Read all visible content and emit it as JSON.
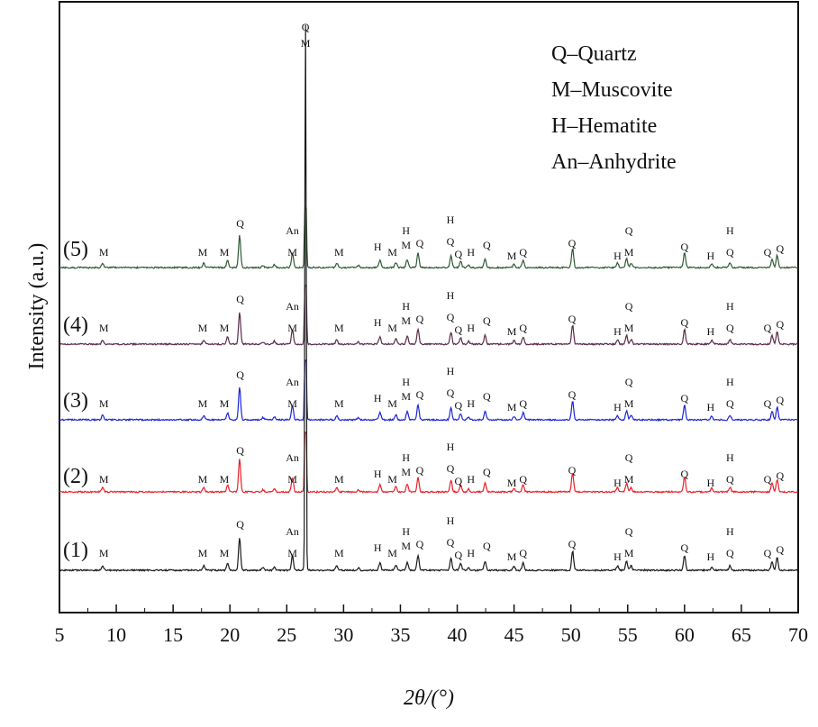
{
  "chart_data": {
    "type": "line",
    "xlabel": "2θ/(°)",
    "ylabel": "Intensity (a.u.)",
    "xlim": [
      5,
      70
    ],
    "xticks": [
      5,
      10,
      15,
      20,
      25,
      30,
      35,
      40,
      45,
      50,
      55,
      60,
      65,
      70
    ],
    "grid": false,
    "legend": {
      "placement": "top-right",
      "entries": [
        "Q–Quartz",
        "M–Muscovite",
        "H–Hematite",
        "An–Anhydrite"
      ]
    },
    "series": [
      {
        "name": "(1)",
        "color": "#1a1a1a"
      },
      {
        "name": "(2)",
        "color": "#e8202a"
      },
      {
        "name": "(3)",
        "color": "#1c24d8"
      },
      {
        "name": "(4)",
        "color": "#5a2a48"
      },
      {
        "name": "(5)",
        "color": "#2e5a34"
      }
    ],
    "peaks": [
      {
        "x": 8.8,
        "h": 0.03
      },
      {
        "x": 17.7,
        "h": 0.03
      },
      {
        "x": 19.8,
        "h": 0.05
      },
      {
        "x": 20.85,
        "h": 0.22
      },
      {
        "x": 22.9,
        "h": 0.015
      },
      {
        "x": 23.9,
        "h": 0.02
      },
      {
        "x": 25.5,
        "h": 0.1
      },
      {
        "x": 26.65,
        "h": 1.0
      },
      {
        "x": 29.4,
        "h": 0.03
      },
      {
        "x": 31.3,
        "h": 0.015
      },
      {
        "x": 33.2,
        "h": 0.05
      },
      {
        "x": 34.6,
        "h": 0.035
      },
      {
        "x": 35.6,
        "h": 0.055
      },
      {
        "x": 36.55,
        "h": 0.1
      },
      {
        "x": 39.45,
        "h": 0.08
      },
      {
        "x": 40.3,
        "h": 0.045
      },
      {
        "x": 41.0,
        "h": 0.02
      },
      {
        "x": 42.45,
        "h": 0.06
      },
      {
        "x": 45.0,
        "h": 0.025
      },
      {
        "x": 45.8,
        "h": 0.05
      },
      {
        "x": 50.15,
        "h": 0.13
      },
      {
        "x": 54.1,
        "h": 0.03
      },
      {
        "x": 54.9,
        "h": 0.06
      },
      {
        "x": 55.3,
        "h": 0.03
      },
      {
        "x": 60.0,
        "h": 0.1
      },
      {
        "x": 62.4,
        "h": 0.025
      },
      {
        "x": 64.0,
        "h": 0.03
      },
      {
        "x": 67.7,
        "h": 0.06
      },
      {
        "x": 68.15,
        "h": 0.085
      }
    ],
    "annotations": [
      {
        "x": 8.9,
        "t": "M",
        "d": 0
      },
      {
        "x": 17.6,
        "t": "M",
        "d": 0
      },
      {
        "x": 19.5,
        "t": "M",
        "d": 0
      },
      {
        "x": 20.9,
        "t": "Q",
        "d": 32
      },
      {
        "x": 25.5,
        "t": "M",
        "d": 0
      },
      {
        "x": 25.5,
        "t": "An",
        "d": 24
      },
      {
        "x": 29.6,
        "t": "M",
        "d": 0
      },
      {
        "x": 33.0,
        "t": "H",
        "d": 6
      },
      {
        "x": 34.3,
        "t": "M",
        "d": 0
      },
      {
        "x": 35.5,
        "t": "M",
        "d": 8
      },
      {
        "x": 35.5,
        "t": "H",
        "d": 24
      },
      {
        "x": 36.7,
        "t": "Q",
        "d": 10
      },
      {
        "x": 39.4,
        "t": "Q",
        "d": 12
      },
      {
        "x": 39.4,
        "t": "H",
        "d": 36
      },
      {
        "x": 40.1,
        "t": "Q",
        "d": -2
      },
      {
        "x": 41.2,
        "t": "H",
        "d": 0
      },
      {
        "x": 42.6,
        "t": "Q",
        "d": 8
      },
      {
        "x": 44.8,
        "t": "M",
        "d": -4
      },
      {
        "x": 45.8,
        "t": "Q",
        "d": 0
      },
      {
        "x": 50.1,
        "t": "Q",
        "d": 10
      },
      {
        "x": 54.1,
        "t": "H",
        "d": -4
      },
      {
        "x": 55.1,
        "t": "M",
        "d": 0
      },
      {
        "x": 55.1,
        "t": "Q",
        "d": 24
      },
      {
        "x": 60.0,
        "t": "Q",
        "d": 6
      },
      {
        "x": 62.3,
        "t": "H",
        "d": -4
      },
      {
        "x": 64.0,
        "t": "Q",
        "d": 0
      },
      {
        "x": 64.0,
        "t": "H",
        "d": 24
      },
      {
        "x": 67.3,
        "t": "Q",
        "d": 0
      },
      {
        "x": 68.4,
        "t": "Q",
        "d": 4
      }
    ],
    "top_peak_labels": [
      "Q",
      "M"
    ]
  }
}
